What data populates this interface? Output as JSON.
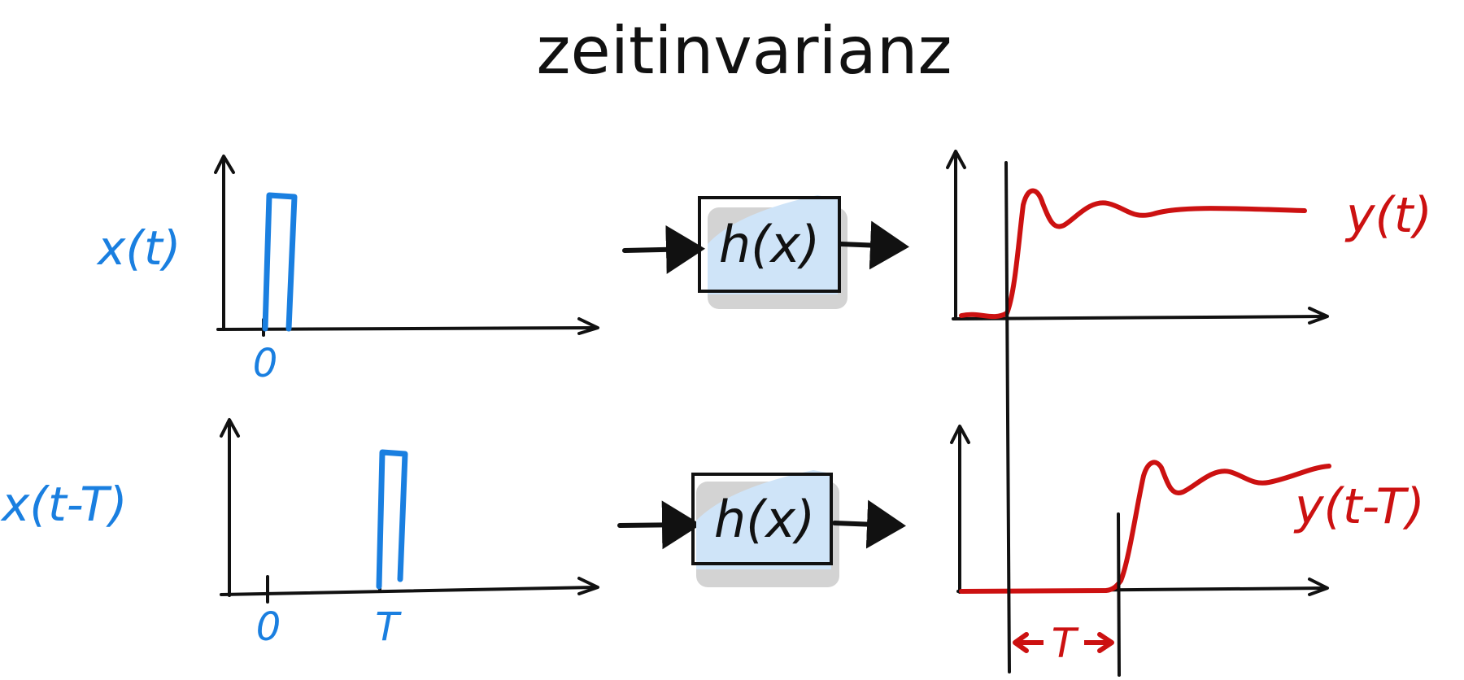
{
  "title": "zeitinvarianz",
  "rows": [
    {
      "input_label": "x(t)",
      "input_ticks": [
        "0"
      ],
      "system_label": "h(x)",
      "output_label": "y(t)"
    },
    {
      "input_label": "x(t-T)",
      "input_ticks": [
        "0",
        "T"
      ],
      "system_label": "h(x)",
      "output_label": "y(t-T)"
    }
  ],
  "shift_label": "T",
  "colors": {
    "input": "#1a7fe0",
    "output": "#cc1111",
    "box_fill": "#cfe4f8",
    "box_shadow": "#d3d3d3",
    "ink": "#111111"
  }
}
